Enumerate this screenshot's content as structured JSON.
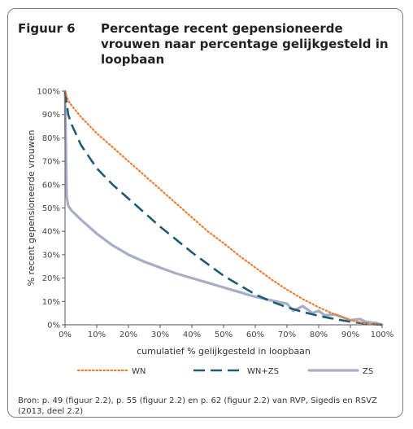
{
  "figure": {
    "label": "Figuur 6",
    "title": "Percentage recent gepensioneerde vrouwen naar percentage gelijkgesteld in loopbaan",
    "source": "Bron: p. 49 (figuur 2.2), p. 55 (figuur 2.2) en p. 62 (figuur 2.2) van RVP, Sigedis en RSVZ (2013, deel 2.2)"
  },
  "chart_data": {
    "type": "line",
    "title": "Percentage recent gepensioneerde vrouwen naar percentage gelijkgesteld in loopbaan",
    "xlabel": "cumulatief % gelijkgesteld in loopbaan",
    "ylabel": "% recent gepensioneerde vrouwen",
    "xlim": [
      0,
      100
    ],
    "ylim": [
      0,
      100
    ],
    "x_ticks": [
      "0%",
      "10%",
      "20%",
      "30%",
      "40%",
      "50%",
      "60%",
      "70%",
      "80%",
      "90%",
      "100%"
    ],
    "y_ticks": [
      "0%",
      "10%",
      "20%",
      "30%",
      "40%",
      "50%",
      "60%",
      "70%",
      "80%",
      "90%",
      "100%"
    ],
    "grid": false,
    "legend_position": "bottom",
    "series": [
      {
        "name": "WN",
        "style": "dotted",
        "color": "#ed7d31",
        "x": [
          0,
          1,
          2,
          5,
          10,
          15,
          20,
          25,
          30,
          35,
          40,
          45,
          50,
          55,
          60,
          65,
          70,
          75,
          80,
          85,
          90,
          95,
          100
        ],
        "y": [
          100,
          96,
          94,
          89,
          82,
          76,
          70,
          64,
          58,
          52,
          46,
          40,
          35,
          29.5,
          24.5,
          19.5,
          15,
          11,
          7.5,
          4.5,
          2,
          0.5,
          0
        ]
      },
      {
        "name": "WN+ZS",
        "style": "dashed",
        "color": "#1f5c73",
        "x": [
          0,
          1,
          2,
          5,
          10,
          15,
          20,
          25,
          30,
          35,
          40,
          45,
          50,
          55,
          60,
          65,
          70,
          75,
          80,
          85,
          90,
          95,
          100
        ],
        "y": [
          100,
          90,
          86,
          77,
          67,
          60,
          54,
          48,
          42,
          36.5,
          31,
          26,
          21,
          17,
          13,
          10,
          7.5,
          5.5,
          3.8,
          2.5,
          1.3,
          0.5,
          0
        ]
      },
      {
        "name": "ZS",
        "style": "solid",
        "color": "#a6adc6",
        "x": [
          0,
          0.5,
          1,
          2,
          5,
          10,
          15,
          20,
          25,
          30,
          35,
          40,
          45,
          50,
          55,
          60,
          65,
          70,
          72,
          75,
          78,
          80,
          82,
          85,
          88,
          90,
          93,
          95,
          98,
          100
        ],
        "y": [
          100,
          55,
          51,
          49,
          45,
          39,
          34,
          30,
          27,
          24.5,
          22,
          20,
          18,
          16,
          14,
          12,
          10.5,
          9,
          6,
          8,
          5,
          6,
          4,
          4.5,
          3,
          2,
          2.5,
          1.2,
          0.8,
          0
        ]
      }
    ]
  }
}
